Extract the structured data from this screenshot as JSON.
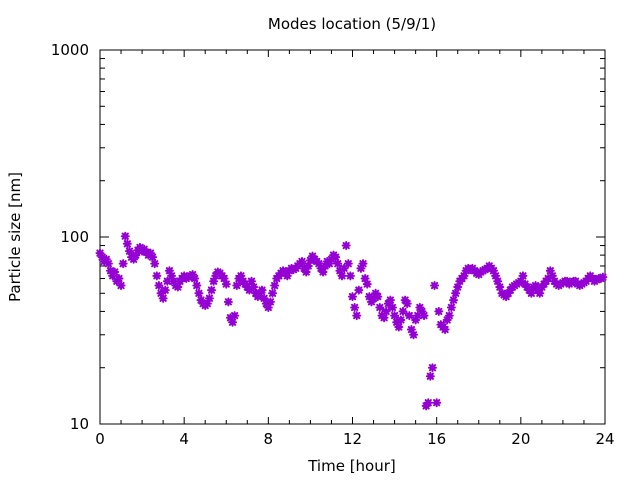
{
  "chart_data": {
    "type": "scatter",
    "title": "Modes location (5/9/1)",
    "xlabel": "Time [hour]",
    "ylabel": "Particle size [nm]",
    "xlim": [
      0,
      24
    ],
    "ylim": [
      10,
      1000
    ],
    "yscale": "log",
    "xticks": [
      0,
      4,
      8,
      12,
      16,
      20,
      24
    ],
    "xtick_labels": [
      "0",
      "4",
      "8",
      "12",
      "16",
      "20",
      "24"
    ],
    "yticks": [
      10,
      100,
      1000
    ],
    "ytick_labels": [
      "10",
      "100",
      "1000"
    ],
    "grid": false,
    "legend": "none",
    "marker_color": "#9400d3",
    "points": [
      [
        0.0,
        82
      ],
      [
        0.1,
        78
      ],
      [
        0.2,
        74
      ],
      [
        0.3,
        76
      ],
      [
        0.4,
        72
      ],
      [
        0.5,
        66
      ],
      [
        0.6,
        62
      ],
      [
        0.7,
        65
      ],
      [
        0.8,
        58
      ],
      [
        0.9,
        60
      ],
      [
        1.0,
        55
      ],
      [
        1.1,
        72
      ],
      [
        1.2,
        101
      ],
      [
        1.3,
        92
      ],
      [
        1.4,
        84
      ],
      [
        1.5,
        78
      ],
      [
        1.6,
        76
      ],
      [
        1.7,
        80
      ],
      [
        1.8,
        85
      ],
      [
        1.9,
        88
      ],
      [
        2.0,
        84
      ],
      [
        2.1,
        86
      ],
      [
        2.2,
        83
      ],
      [
        2.3,
        80
      ],
      [
        2.4,
        82
      ],
      [
        2.5,
        78
      ],
      [
        2.6,
        72
      ],
      [
        2.7,
        62
      ],
      [
        2.8,
        55
      ],
      [
        2.9,
        50
      ],
      [
        3.0,
        47
      ],
      [
        3.1,
        52
      ],
      [
        3.2,
        58
      ],
      [
        3.3,
        66
      ],
      [
        3.4,
        62
      ],
      [
        3.5,
        58
      ],
      [
        3.6,
        55
      ],
      [
        3.7,
        54
      ],
      [
        3.8,
        58
      ],
      [
        3.9,
        60
      ],
      [
        4.0,
        62
      ],
      [
        4.1,
        60
      ],
      [
        4.2,
        61
      ],
      [
        4.3,
        62
      ],
      [
        4.4,
        63
      ],
      [
        4.5,
        60
      ],
      [
        4.6,
        55
      ],
      [
        4.7,
        50
      ],
      [
        4.8,
        46
      ],
      [
        4.9,
        44
      ],
      [
        5.0,
        43
      ],
      [
        5.1,
        44
      ],
      [
        5.2,
        47
      ],
      [
        5.3,
        52
      ],
      [
        5.4,
        58
      ],
      [
        5.5,
        62
      ],
      [
        5.6,
        65
      ],
      [
        5.7,
        64
      ],
      [
        5.8,
        62
      ],
      [
        5.9,
        60
      ],
      [
        6.0,
        56
      ],
      [
        6.1,
        45
      ],
      [
        6.2,
        37
      ],
      [
        6.3,
        35
      ],
      [
        6.4,
        38
      ],
      [
        6.5,
        55
      ],
      [
        6.6,
        60
      ],
      [
        6.7,
        62
      ],
      [
        6.8,
        58
      ],
      [
        6.9,
        56
      ],
      [
        7.0,
        54
      ],
      [
        7.1,
        52
      ],
      [
        7.2,
        58
      ],
      [
        7.3,
        54
      ],
      [
        7.4,
        50
      ],
      [
        7.5,
        48
      ],
      [
        7.6,
        50
      ],
      [
        7.7,
        52
      ],
      [
        7.8,
        47
      ],
      [
        7.9,
        44
      ],
      [
        8.0,
        42
      ],
      [
        8.1,
        45
      ],
      [
        8.2,
        50
      ],
      [
        8.3,
        55
      ],
      [
        8.4,
        60
      ],
      [
        8.5,
        62
      ],
      [
        8.6,
        64
      ],
      [
        8.7,
        66
      ],
      [
        8.8,
        65
      ],
      [
        8.9,
        62
      ],
      [
        9.0,
        66
      ],
      [
        9.1,
        68
      ],
      [
        9.2,
        67
      ],
      [
        9.3,
        68
      ],
      [
        9.4,
        70
      ],
      [
        9.5,
        72
      ],
      [
        9.6,
        74
      ],
      [
        9.7,
        68
      ],
      [
        9.8,
        65
      ],
      [
        9.9,
        70
      ],
      [
        10.0,
        75
      ],
      [
        10.1,
        79
      ],
      [
        10.2,
        76
      ],
      [
        10.3,
        74
      ],
      [
        10.4,
        72
      ],
      [
        10.5,
        68
      ],
      [
        10.6,
        65
      ],
      [
        10.7,
        70
      ],
      [
        10.8,
        74
      ],
      [
        10.9,
        72
      ],
      [
        11.0,
        76
      ],
      [
        11.1,
        80
      ],
      [
        11.2,
        78
      ],
      [
        11.3,
        72
      ],
      [
        11.4,
        66
      ],
      [
        11.5,
        62
      ],
      [
        11.6,
        68
      ],
      [
        11.7,
        90
      ],
      [
        11.8,
        72
      ],
      [
        11.9,
        62
      ],
      [
        12.0,
        48
      ],
      [
        12.1,
        42
      ],
      [
        12.2,
        38
      ],
      [
        12.3,
        52
      ],
      [
        12.4,
        68
      ],
      [
        12.5,
        72
      ],
      [
        12.6,
        60
      ],
      [
        12.7,
        56
      ],
      [
        12.8,
        48
      ],
      [
        12.9,
        45
      ],
      [
        13.0,
        47
      ],
      [
        13.1,
        50
      ],
      [
        13.2,
        48
      ],
      [
        13.3,
        42
      ],
      [
        13.4,
        38
      ],
      [
        13.5,
        37
      ],
      [
        13.6,
        40
      ],
      [
        13.7,
        44
      ],
      [
        13.8,
        46
      ],
      [
        13.9,
        42
      ],
      [
        14.0,
        38
      ],
      [
        14.1,
        35
      ],
      [
        14.2,
        33
      ],
      [
        14.3,
        36
      ],
      [
        14.4,
        40
      ],
      [
        14.5,
        46
      ],
      [
        14.6,
        44
      ],
      [
        14.7,
        38
      ],
      [
        14.8,
        32
      ],
      [
        14.9,
        30
      ],
      [
        15.0,
        36
      ],
      [
        15.1,
        38
      ],
      [
        15.2,
        42
      ],
      [
        15.3,
        40
      ],
      [
        15.4,
        38
      ],
      [
        15.5,
        12.5
      ],
      [
        15.6,
        13
      ],
      [
        15.7,
        18
      ],
      [
        15.8,
        20
      ],
      [
        15.9,
        55
      ],
      [
        16.0,
        13
      ],
      [
        16.1,
        40
      ],
      [
        16.2,
        34
      ],
      [
        16.3,
        33
      ],
      [
        16.4,
        32
      ],
      [
        16.5,
        36
      ],
      [
        16.6,
        38
      ],
      [
        16.7,
        42
      ],
      [
        16.8,
        46
      ],
      [
        16.9,
        50
      ],
      [
        17.0,
        54
      ],
      [
        17.1,
        58
      ],
      [
        17.2,
        60
      ],
      [
        17.3,
        62
      ],
      [
        17.4,
        66
      ],
      [
        17.5,
        68
      ],
      [
        17.6,
        67
      ],
      [
        17.7,
        68
      ],
      [
        17.8,
        66
      ],
      [
        17.9,
        64
      ],
      [
        18.0,
        63
      ],
      [
        18.1,
        65
      ],
      [
        18.2,
        66
      ],
      [
        18.3,
        67
      ],
      [
        18.4,
        68
      ],
      [
        18.5,
        70
      ],
      [
        18.6,
        68
      ],
      [
        18.7,
        66
      ],
      [
        18.8,
        62
      ],
      [
        18.9,
        58
      ],
      [
        19.0,
        54
      ],
      [
        19.1,
        50
      ],
      [
        19.2,
        49
      ],
      [
        19.3,
        48
      ],
      [
        19.4,
        50
      ],
      [
        19.5,
        52
      ],
      [
        19.6,
        54
      ],
      [
        19.7,
        55
      ],
      [
        19.8,
        56
      ],
      [
        19.9,
        57
      ],
      [
        20.0,
        58
      ],
      [
        20.1,
        62
      ],
      [
        20.2,
        56
      ],
      [
        20.3,
        54
      ],
      [
        20.4,
        52
      ],
      [
        20.5,
        50
      ],
      [
        20.6,
        54
      ],
      [
        20.7,
        55
      ],
      [
        20.8,
        52
      ],
      [
        20.9,
        50
      ],
      [
        21.0,
        54
      ],
      [
        21.1,
        56
      ],
      [
        21.2,
        58
      ],
      [
        21.3,
        60
      ],
      [
        21.4,
        66
      ],
      [
        21.5,
        62
      ],
      [
        21.6,
        58
      ],
      [
        21.7,
        56
      ],
      [
        21.8,
        55
      ],
      [
        21.9,
        56
      ],
      [
        22.0,
        57
      ],
      [
        22.1,
        58
      ],
      [
        22.2,
        58
      ],
      [
        22.3,
        56
      ],
      [
        22.4,
        57
      ],
      [
        22.5,
        58
      ],
      [
        22.6,
        58
      ],
      [
        22.7,
        56
      ],
      [
        22.8,
        55
      ],
      [
        22.9,
        56
      ],
      [
        23.0,
        57
      ],
      [
        23.1,
        58
      ],
      [
        23.2,
        60
      ],
      [
        23.3,
        62
      ],
      [
        23.4,
        60
      ],
      [
        23.5,
        58
      ],
      [
        23.6,
        59
      ],
      [
        23.7,
        60
      ],
      [
        23.8,
        60
      ],
      [
        23.9,
        61
      ]
    ]
  }
}
